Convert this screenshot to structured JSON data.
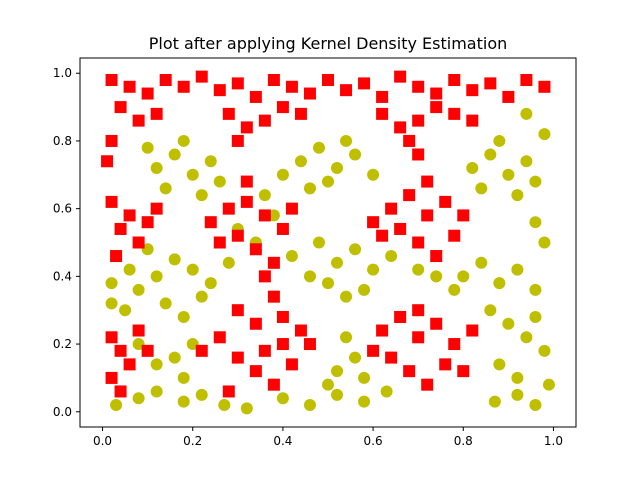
{
  "chart_data": {
    "type": "scatter",
    "title": "Plot after applying Kernel Density Estimation",
    "xlabel": "",
    "ylabel": "",
    "xlim": [
      -0.05,
      1.05
    ],
    "ylim": [
      -0.045,
      1.045
    ],
    "xticks": [
      "0.0",
      "0.2",
      "0.4",
      "0.6",
      "0.8",
      "1.0"
    ],
    "xtick_values": [
      0.0,
      0.2,
      0.4,
      0.6,
      0.8,
      1.0
    ],
    "yticks": [
      "0.0",
      "0.2",
      "0.4",
      "0.6",
      "0.8",
      "1.0"
    ],
    "ytick_values": [
      0.0,
      0.2,
      0.4,
      0.6,
      0.8,
      1.0
    ],
    "grid": false,
    "legend": "none",
    "point_count_per_series": "approx",
    "series": [
      {
        "marker": "circle",
        "color": "#bfbf00",
        "region_description": "uniform points in the unit square classified as low density",
        "points": [
          [
            0.03,
            0.02
          ],
          [
            0.08,
            0.04
          ],
          [
            0.12,
            0.06
          ],
          [
            0.18,
            0.03
          ],
          [
            0.22,
            0.05
          ],
          [
            0.27,
            0.02
          ],
          [
            0.32,
            0.01
          ],
          [
            0.4,
            0.04
          ],
          [
            0.46,
            0.02
          ],
          [
            0.52,
            0.05
          ],
          [
            0.58,
            0.03
          ],
          [
            0.63,
            0.06
          ],
          [
            0.87,
            0.03
          ],
          [
            0.92,
            0.05
          ],
          [
            0.96,
            0.02
          ],
          [
            0.99,
            0.08
          ],
          [
            0.05,
            0.3
          ],
          [
            0.08,
            0.36
          ],
          [
            0.12,
            0.4
          ],
          [
            0.16,
            0.45
          ],
          [
            0.2,
            0.42
          ],
          [
            0.24,
            0.38
          ],
          [
            0.28,
            0.44
          ],
          [
            0.14,
            0.32
          ],
          [
            0.18,
            0.28
          ],
          [
            0.22,
            0.34
          ],
          [
            0.1,
            0.48
          ],
          [
            0.06,
            0.42
          ],
          [
            0.02,
            0.38
          ],
          [
            0.12,
            0.72
          ],
          [
            0.16,
            0.76
          ],
          [
            0.2,
            0.7
          ],
          [
            0.24,
            0.74
          ],
          [
            0.18,
            0.8
          ],
          [
            0.14,
            0.66
          ],
          [
            0.22,
            0.64
          ],
          [
            0.26,
            0.68
          ],
          [
            0.1,
            0.78
          ],
          [
            0.42,
            0.46
          ],
          [
            0.48,
            0.5
          ],
          [
            0.52,
            0.44
          ],
          [
            0.56,
            0.48
          ],
          [
            0.6,
            0.42
          ],
          [
            0.64,
            0.46
          ],
          [
            0.5,
            0.38
          ],
          [
            0.54,
            0.34
          ],
          [
            0.46,
            0.4
          ],
          [
            0.58,
            0.36
          ],
          [
            0.44,
            0.74
          ],
          [
            0.48,
            0.78
          ],
          [
            0.52,
            0.72
          ],
          [
            0.56,
            0.76
          ],
          [
            0.5,
            0.68
          ],
          [
            0.54,
            0.8
          ],
          [
            0.46,
            0.66
          ],
          [
            0.6,
            0.7
          ],
          [
            0.82,
            0.72
          ],
          [
            0.86,
            0.76
          ],
          [
            0.9,
            0.7
          ],
          [
            0.94,
            0.74
          ],
          [
            0.88,
            0.8
          ],
          [
            0.92,
            0.64
          ],
          [
            0.96,
            0.68
          ],
          [
            0.84,
            0.66
          ],
          [
            0.98,
            0.82
          ],
          [
            0.94,
            0.88
          ],
          [
            0.8,
            0.4
          ],
          [
            0.84,
            0.44
          ],
          [
            0.88,
            0.38
          ],
          [
            0.92,
            0.42
          ],
          [
            0.96,
            0.36
          ],
          [
            0.86,
            0.3
          ],
          [
            0.9,
            0.26
          ],
          [
            0.94,
            0.22
          ],
          [
            0.98,
            0.18
          ],
          [
            0.88,
            0.14
          ],
          [
            0.92,
            0.1
          ],
          [
            0.96,
            0.28
          ],
          [
            0.78,
            0.36
          ],
          [
            0.74,
            0.4
          ],
          [
            0.7,
            0.42
          ],
          [
            0.52,
            0.12
          ],
          [
            0.56,
            0.16
          ],
          [
            0.54,
            0.22
          ],
          [
            0.5,
            0.08
          ],
          [
            0.58,
            0.1
          ],
          [
            0.2,
            0.2
          ],
          [
            0.16,
            0.16
          ],
          [
            0.18,
            0.1
          ],
          [
            0.12,
            0.14
          ],
          [
            0.08,
            0.2
          ],
          [
            0.3,
            0.54
          ],
          [
            0.34,
            0.5
          ],
          [
            0.38,
            0.58
          ],
          [
            0.36,
            0.64
          ],
          [
            0.4,
            0.7
          ],
          [
            0.98,
            0.5
          ],
          [
            0.96,
            0.56
          ],
          [
            0.02,
            0.32
          ]
        ]
      },
      {
        "marker": "square",
        "color": "#ff0000",
        "region_description": "points classified as high density",
        "points": [
          [
            0.02,
            0.98
          ],
          [
            0.06,
            0.96
          ],
          [
            0.1,
            0.94
          ],
          [
            0.14,
            0.98
          ],
          [
            0.18,
            0.96
          ],
          [
            0.22,
            0.99
          ],
          [
            0.26,
            0.95
          ],
          [
            0.3,
            0.97
          ],
          [
            0.34,
            0.93
          ],
          [
            0.38,
            0.98
          ],
          [
            0.42,
            0.96
          ],
          [
            0.46,
            0.94
          ],
          [
            0.5,
            0.98
          ],
          [
            0.54,
            0.95
          ],
          [
            0.58,
            0.97
          ],
          [
            0.62,
            0.93
          ],
          [
            0.66,
            0.99
          ],
          [
            0.7,
            0.96
          ],
          [
            0.74,
            0.94
          ],
          [
            0.78,
            0.98
          ],
          [
            0.82,
            0.95
          ],
          [
            0.86,
            0.97
          ],
          [
            0.9,
            0.93
          ],
          [
            0.94,
            0.98
          ],
          [
            0.98,
            0.96
          ],
          [
            0.04,
            0.9
          ],
          [
            0.08,
            0.86
          ],
          [
            0.12,
            0.88
          ],
          [
            0.28,
            0.88
          ],
          [
            0.32,
            0.84
          ],
          [
            0.36,
            0.86
          ],
          [
            0.4,
            0.9
          ],
          [
            0.44,
            0.88
          ],
          [
            0.62,
            0.88
          ],
          [
            0.66,
            0.84
          ],
          [
            0.7,
            0.86
          ],
          [
            0.74,
            0.9
          ],
          [
            0.78,
            0.88
          ],
          [
            0.82,
            0.86
          ],
          [
            0.02,
            0.8
          ],
          [
            0.01,
            0.74
          ],
          [
            0.3,
            0.8
          ],
          [
            0.68,
            0.8
          ],
          [
            0.7,
            0.76
          ],
          [
            0.02,
            0.62
          ],
          [
            0.06,
            0.58
          ],
          [
            0.04,
            0.54
          ],
          [
            0.08,
            0.5
          ],
          [
            0.1,
            0.56
          ],
          [
            0.12,
            0.6
          ],
          [
            0.03,
            0.46
          ],
          [
            0.24,
            0.56
          ],
          [
            0.28,
            0.6
          ],
          [
            0.32,
            0.62
          ],
          [
            0.36,
            0.58
          ],
          [
            0.4,
            0.54
          ],
          [
            0.3,
            0.52
          ],
          [
            0.34,
            0.48
          ],
          [
            0.38,
            0.44
          ],
          [
            0.26,
            0.5
          ],
          [
            0.42,
            0.6
          ],
          [
            0.32,
            0.68
          ],
          [
            0.36,
            0.4
          ],
          [
            0.38,
            0.34
          ],
          [
            0.3,
            0.3
          ],
          [
            0.34,
            0.26
          ],
          [
            0.4,
            0.28
          ],
          [
            0.44,
            0.24
          ],
          [
            0.26,
            0.22
          ],
          [
            0.22,
            0.18
          ],
          [
            0.3,
            0.16
          ],
          [
            0.34,
            0.12
          ],
          [
            0.38,
            0.08
          ],
          [
            0.42,
            0.14
          ],
          [
            0.46,
            0.2
          ],
          [
            0.28,
            0.06
          ],
          [
            0.36,
            0.18
          ],
          [
            0.4,
            0.2
          ],
          [
            0.64,
            0.6
          ],
          [
            0.68,
            0.64
          ],
          [
            0.72,
            0.58
          ],
          [
            0.76,
            0.62
          ],
          [
            0.66,
            0.54
          ],
          [
            0.7,
            0.5
          ],
          [
            0.74,
            0.46
          ],
          [
            0.78,
            0.52
          ],
          [
            0.62,
            0.52
          ],
          [
            0.6,
            0.56
          ],
          [
            0.72,
            0.68
          ],
          [
            0.8,
            0.58
          ],
          [
            0.62,
            0.24
          ],
          [
            0.66,
            0.28
          ],
          [
            0.7,
            0.22
          ],
          [
            0.74,
            0.26
          ],
          [
            0.78,
            0.2
          ],
          [
            0.64,
            0.16
          ],
          [
            0.68,
            0.12
          ],
          [
            0.72,
            0.08
          ],
          [
            0.76,
            0.14
          ],
          [
            0.8,
            0.12
          ],
          [
            0.82,
            0.24
          ],
          [
            0.6,
            0.18
          ],
          [
            0.7,
            0.3
          ],
          [
            0.02,
            0.22
          ],
          [
            0.04,
            0.18
          ],
          [
            0.06,
            0.14
          ],
          [
            0.08,
            0.24
          ],
          [
            0.02,
            0.1
          ],
          [
            0.04,
            0.06
          ],
          [
            0.1,
            0.18
          ]
        ]
      }
    ]
  }
}
